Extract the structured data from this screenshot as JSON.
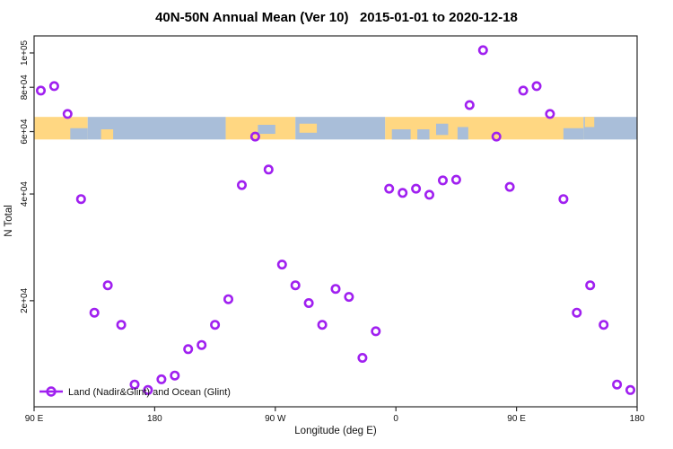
{
  "title": "40N-50N Annual Mean (Ver 10)   2015-01-01 to 2020-12-18",
  "chart_data": {
    "type": "scatter",
    "title": "40N-50N Annual Mean (Ver 10)   2015-01-01 to 2020-12-18",
    "xlabel": "Longitude (deg E)",
    "ylabel": "N Total",
    "y_scale": "log",
    "ylim": [
      10040,
      111700
    ],
    "xlim": [
      90,
      540
    ],
    "x_axis_note": "longitude plotted eastward from 90E around the globe; 95E-175E points appear at both ends",
    "grid": "off",
    "x_ticks": [
      {
        "lon": 90,
        "label": "90 E"
      },
      {
        "lon": 180,
        "label": "180"
      },
      {
        "lon": 270,
        "label": "90 W"
      },
      {
        "lon": 360,
        "label": "0"
      },
      {
        "lon": 450,
        "label": "90 E"
      },
      {
        "lon": 540,
        "label": "180"
      }
    ],
    "y_ticks": [
      {
        "value": 100000,
        "label": "1e+05"
      },
      {
        "value": 80000,
        "label": "8e+04"
      },
      {
        "value": 60000,
        "label": "6e+04"
      },
      {
        "value": 40000,
        "label": "4e+04"
      },
      {
        "value": 20000,
        "label": "2e+04"
      }
    ],
    "legend": {
      "label": "Land (Nadir&Glint) and Ocean (Glint)",
      "position": "bottom-left"
    },
    "series": [
      {
        "name": "Land (Nadir&Glint) and Ocean (Glint)",
        "marker": "open-circle",
        "points": [
          [
            95,
            78300
          ],
          [
            105,
            80600
          ],
          [
            115,
            67300
          ],
          [
            125,
            38700
          ],
          [
            135,
            18500
          ],
          [
            145,
            22100
          ],
          [
            155,
            17100
          ],
          [
            165,
            11600
          ],
          [
            175,
            11200
          ],
          [
            185,
            12000
          ],
          [
            195,
            12300
          ],
          [
            205,
            14600
          ],
          [
            215,
            15000
          ],
          [
            225,
            17100
          ],
          [
            235,
            20200
          ],
          [
            245,
            42400
          ],
          [
            255,
            58100
          ],
          [
            265,
            46900
          ],
          [
            275,
            25300
          ],
          [
            285,
            22100
          ],
          [
            295,
            19700
          ],
          [
            305,
            17100
          ],
          [
            315,
            21600
          ],
          [
            325,
            20500
          ],
          [
            335,
            13800
          ],
          [
            345,
            16400
          ],
          [
            355,
            41400
          ],
          [
            365,
            40300
          ],
          [
            375,
            41400
          ],
          [
            385,
            39800
          ],
          [
            395,
            43700
          ],
          [
            405,
            43900
          ],
          [
            415,
            71300
          ],
          [
            425,
            101800
          ],
          [
            435,
            58100
          ],
          [
            445,
            41900
          ],
          [
            455,
            78300
          ],
          [
            465,
            80600
          ],
          [
            475,
            67300
          ],
          [
            485,
            38700
          ],
          [
            495,
            18500
          ],
          [
            505,
            22100
          ],
          [
            515,
            17100
          ],
          [
            525,
            11600
          ],
          [
            535,
            11200
          ]
        ]
      }
    ],
    "map_band": {
      "description": "40N-50N land/ocean strip map drawn across the plot",
      "value_top": 66000,
      "value_bottom": 57000,
      "segments": [
        {
          "from": 90,
          "to": 130,
          "type": "land"
        },
        {
          "from": 130,
          "to": 233,
          "type": "ocean"
        },
        {
          "from": 233,
          "to": 285,
          "type": "land"
        },
        {
          "from": 285,
          "to": 352,
          "type": "ocean"
        },
        {
          "from": 352,
          "to": 500,
          "type": "land"
        },
        {
          "from": 500,
          "to": 540,
          "type": "ocean"
        }
      ],
      "patches": [
        {
          "from": 117,
          "to": 130,
          "type": "ocean",
          "top": 0.5,
          "bottom": 1.0
        },
        {
          "from": 140,
          "to": 149,
          "type": "land",
          "top": 0.55,
          "bottom": 1.0
        },
        {
          "from": 257,
          "to": 270,
          "type": "ocean",
          "top": 0.35,
          "bottom": 0.75
        },
        {
          "from": 288,
          "to": 301,
          "type": "land",
          "top": 0.3,
          "bottom": 0.7
        },
        {
          "from": 357,
          "to": 371,
          "type": "ocean",
          "top": 0.55,
          "bottom": 1.0
        },
        {
          "from": 376,
          "to": 385,
          "type": "ocean",
          "top": 0.55,
          "bottom": 1.0
        },
        {
          "from": 390,
          "to": 399,
          "type": "ocean",
          "top": 0.3,
          "bottom": 0.8
        },
        {
          "from": 406,
          "to": 414,
          "type": "ocean",
          "top": 0.45,
          "bottom": 1.0
        },
        {
          "from": 485,
          "to": 500,
          "type": "ocean",
          "top": 0.5,
          "bottom": 1.0
        },
        {
          "from": 501,
          "to": 508,
          "type": "land",
          "top": 0.0,
          "bottom": 0.45
        }
      ]
    },
    "colors": {
      "marker": "#A020F0",
      "land": "#FFD782",
      "ocean": "#A9BED9",
      "axis": "#2b2b2b",
      "text": "#000000"
    }
  }
}
